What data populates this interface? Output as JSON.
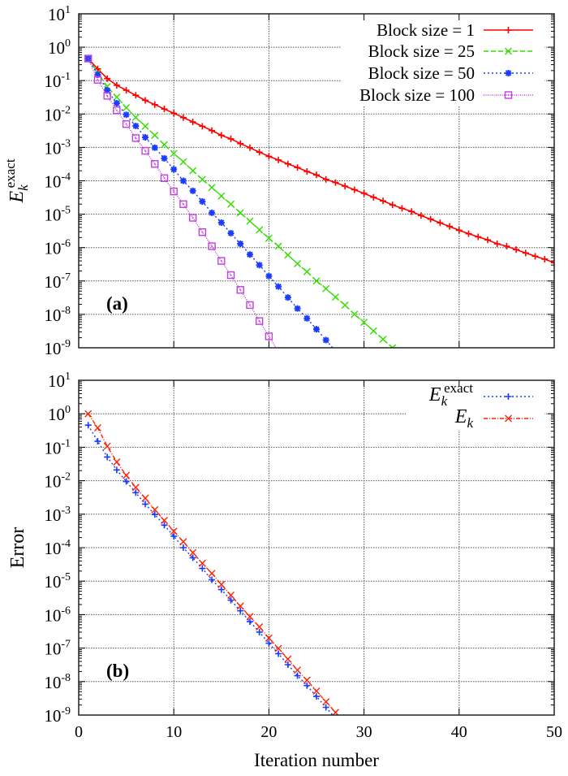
{
  "chart_data": [
    {
      "type": "line",
      "panel_label": "(a)",
      "ylabel": {
        "base": "E",
        "sub": "k",
        "sup": "exact"
      },
      "xlabel": "",
      "xlim": [
        0,
        50
      ],
      "ylim": [
        1e-09,
        10
      ],
      "yscale": "log",
      "grid": true,
      "legend_position": "top-right",
      "xticks": [
        "0",
        "10",
        "20",
        "30",
        "40",
        "50"
      ],
      "yticks": [
        "1",
        "0",
        "-1",
        "-2",
        "-3",
        "-4",
        "-5",
        "-6",
        "-7",
        "-8",
        "-9"
      ],
      "series": [
        {
          "name": "Block size = 1",
          "color": "#ff0000",
          "marker": "plus",
          "dash": "solid",
          "x": [
            1,
            2,
            3,
            4,
            5,
            6,
            7,
            8,
            9,
            10,
            11,
            12,
            13,
            14,
            15,
            16,
            17,
            18,
            19,
            20,
            21,
            22,
            23,
            24,
            25,
            26,
            27,
            28,
            29,
            30,
            31,
            32,
            33,
            34,
            35,
            36,
            37,
            38,
            39,
            40,
            41,
            42,
            43,
            44,
            45,
            46,
            47,
            48,
            49,
            50
          ],
          "y": [
            0.457,
            0.224,
            0.115,
            0.0724,
            0.0513,
            0.0363,
            0.0257,
            0.0191,
            0.0141,
            0.0105,
            0.0078,
            0.0058,
            0.0043,
            0.0032,
            0.0023,
            0.0018,
            0.0013,
            0.00098,
            0.00072,
            0.00054,
            0.00042,
            0.00032,
            0.00025,
            0.00019,
            0.00015,
            0.00011,
            8.9e-05,
            6.9e-05,
            5.4e-05,
            4.2e-05,
            3.2e-05,
            2.5e-05,
            1.9e-05,
            1.5e-05,
            1.2e-05,
            9.1e-06,
            7.1e-06,
            5.5e-06,
            4.3e-06,
            3.3e-06,
            2.6e-06,
            2.1e-06,
            1.7e-06,
            1.3e-06,
            1.1e-06,
            8.7e-07,
            6.9e-07,
            5.5e-07,
            4.5e-07,
            3.5e-07
          ]
        },
        {
          "name": "Block size = 25",
          "color": "#33dd00",
          "marker": "cross",
          "dash": "dashed",
          "x": [
            1,
            2,
            3,
            4,
            5,
            6,
            7,
            8,
            9,
            10,
            11,
            12,
            13,
            14,
            15,
            16,
            17,
            18,
            19,
            20,
            21,
            22,
            23,
            24,
            25,
            26,
            27,
            28,
            29,
            30,
            31,
            32,
            33
          ],
          "y": [
            0.457,
            0.174,
            0.066,
            0.032,
            0.0155,
            0.0079,
            0.0043,
            0.0023,
            0.0012,
            0.00066,
            0.00037,
            0.0002,
            0.00011,
            6.3e-05,
            3.5e-05,
            2e-05,
            1.1e-05,
            6.2e-06,
            3.4e-06,
            1.9e-06,
            1.1e-06,
            6e-07,
            3.3e-07,
            1.9e-07,
            1e-07,
            5.9e-08,
            3.3e-08,
            1.9e-08,
            1e-08,
            5.8e-09,
            3.2e-09,
            1.8e-09,
            1e-09
          ]
        },
        {
          "name": "Block size = 50",
          "color": "#1a3cff",
          "marker": "star",
          "dash": "dotted",
          "x": [
            1,
            2,
            3,
            4,
            5,
            6,
            7,
            8,
            9,
            10,
            11,
            12,
            13,
            14,
            15,
            16,
            17,
            18,
            19,
            20,
            21,
            22,
            23,
            24,
            25,
            26
          ],
          "y": [
            0.457,
            0.151,
            0.051,
            0.021,
            0.0095,
            0.0044,
            0.002,
            0.00098,
            0.00047,
            0.00022,
            0.0001,
            5e-05,
            2.4e-05,
            1.1e-05,
            5.6e-06,
            2.7e-06,
            1.3e-06,
            6.2e-07,
            3e-07,
            1.4e-07,
            6.8e-08,
            3.2e-08,
            1.5e-08,
            7.6e-09,
            3.6e-09,
            1.7e-09
          ]
        },
        {
          "name": "Block size = 100",
          "color": "#c040e0",
          "marker": "square",
          "dash": "finedot",
          "x": [
            1,
            2,
            3,
            4,
            5,
            6,
            7,
            8,
            9,
            10,
            11,
            12,
            13,
            14,
            15,
            16,
            17,
            18,
            19,
            20
          ],
          "y": [
            0.457,
            0.105,
            0.035,
            0.0129,
            0.005,
            0.0019,
            0.00079,
            0.00032,
            0.00012,
            4.8e-05,
            2e-05,
            7.8e-06,
            2.9e-06,
            1.1e-06,
            4e-07,
            1.5e-07,
            5.4e-08,
            1.9e-08,
            6.3e-09,
            2.2e-09
          ]
        }
      ]
    },
    {
      "type": "line",
      "panel_label": "(b)",
      "ylabel": "Error",
      "xlabel": "Iteration number",
      "xlim": [
        0,
        50
      ],
      "ylim": [
        1e-09,
        10
      ],
      "yscale": "log",
      "grid": true,
      "legend_position": "top-right",
      "xticks": [
        "0",
        "10",
        "20",
        "30",
        "40",
        "50"
      ],
      "yticks": [
        "1",
        "0",
        "-1",
        "-2",
        "-3",
        "-4",
        "-5",
        "-6",
        "-7",
        "-8",
        "-9"
      ],
      "series": [
        {
          "name": {
            "base": "E",
            "sub": "k",
            "sup": "exact"
          },
          "color": "#1a3cff",
          "marker": "plus",
          "dash": "dotted",
          "x": [
            1,
            2,
            3,
            4,
            5,
            6,
            7,
            8,
            9,
            10,
            11,
            12,
            13,
            14,
            15,
            16,
            17,
            18,
            19,
            20,
            21,
            22,
            23,
            24,
            25,
            26
          ],
          "y": [
            0.457,
            0.151,
            0.051,
            0.021,
            0.0095,
            0.0044,
            0.002,
            0.00098,
            0.00047,
            0.00022,
            0.0001,
            5e-05,
            2.4e-05,
            1.1e-05,
            5.6e-06,
            2.7e-06,
            1.3e-06,
            6.2e-07,
            3e-07,
            1.4e-07,
            6.8e-08,
            3.2e-08,
            1.5e-08,
            7.6e-09,
            3.6e-09,
            1.7e-09
          ]
        },
        {
          "name": {
            "base": "E",
            "sub": "k",
            "sup": ""
          },
          "color": "#ff2200",
          "marker": "cross",
          "dash": "dashdot",
          "x": [
            1,
            2,
            3,
            4,
            5,
            6,
            7,
            8,
            9,
            10,
            11,
            12,
            13,
            14,
            15,
            16,
            17,
            18,
            19,
            20,
            21,
            22,
            23,
            24,
            25,
            26,
            27
          ],
          "y": [
            1.0,
            0.38,
            0.107,
            0.036,
            0.0145,
            0.0063,
            0.003,
            0.00135,
            0.00065,
            0.00031,
            0.00015,
            7.1e-05,
            3.4e-05,
            1.7e-05,
            7.9e-06,
            3.8e-06,
            1.8e-06,
            8.7e-07,
            4.3e-07,
            2e-07,
            9.8e-08,
            4.7e-08,
            2.2e-08,
            1.1e-08,
            5.2e-09,
            2.5e-09,
            1.2e-09
          ]
        }
      ]
    }
  ]
}
